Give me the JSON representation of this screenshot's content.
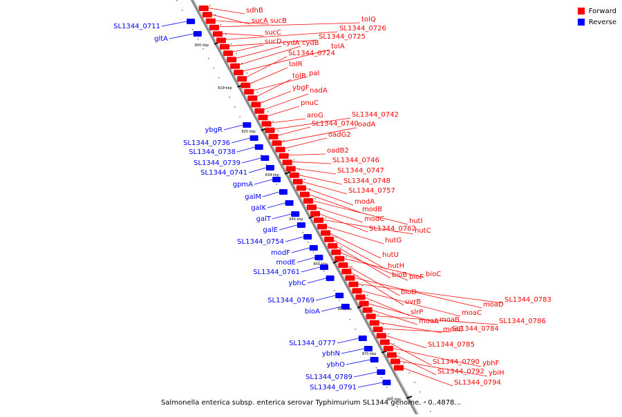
{
  "legend": [
    {
      "label": "Forward",
      "color": "#ff0000"
    },
    {
      "label": "Reverse",
      "color": "#0000ff"
    }
  ],
  "caption": "Salmonella enterica subsp. enterica serovar Typhimurium SL1344 genome. - 0..4878...",
  "colors": {
    "forward": "#ff0000",
    "reverse": "#0000ff",
    "backbone": "#888888"
  },
  "tick_labels": [
    "800 kbp",
    "810 kbp",
    "820 kbp",
    "830 kbp",
    "840 kbp",
    "850 kbp",
    "860 kbp",
    "870 kbp",
    "880 kbp"
  ],
  "forward_genes": [
    "sdhB",
    "sucA",
    "sucB",
    "tolQ",
    "sucC",
    "SL1344_0726",
    "SL1344_0725",
    "sucD",
    "cydA",
    "cydB",
    "tolA",
    "SL1344_0724",
    "tolR",
    "pal",
    "tolB",
    "ybgF",
    "nadA",
    "pnuC",
    "aroG",
    "SL1344_0742",
    "SL1344_0740",
    "oadA",
    "oadG2",
    "oadB2",
    "SL1344_0746",
    "SL1344_0747",
    "SL1344_0748",
    "SL1344_0757",
    "modA",
    "modB",
    "hutI",
    "modC",
    "SL1344_0762",
    "hutC",
    "hutG",
    "hutU",
    "hutH",
    "bioB",
    "bioF",
    "bioC",
    "bioD",
    "uvrB",
    "moaD",
    "SL1344_0783",
    "moaC",
    "slrP",
    "moaB",
    "moaA",
    "SL1344_0786",
    "moaE",
    "SL1344_0784",
    "SL1344_0785",
    "SL1344_0790",
    "ybhF",
    "SL1344_0792",
    "ybiH",
    "SL1344_0794"
  ],
  "reverse_genes": [
    "SL1344_0711",
    "gltA",
    "ybgR",
    "SL1344_0736",
    "SL1344_0738",
    "SL1344_0739",
    "SL1344_0741",
    "gpmA",
    "galM",
    "galK",
    "galT",
    "galE",
    "SL1344_0754",
    "modF",
    "modE",
    "SL1344_0761",
    "ybhC",
    "SL1344_0769",
    "bioA",
    "SL1344_0777",
    "ybhN",
    "ybhO",
    "SL1344_0789",
    "SL1344_0791"
  ]
}
